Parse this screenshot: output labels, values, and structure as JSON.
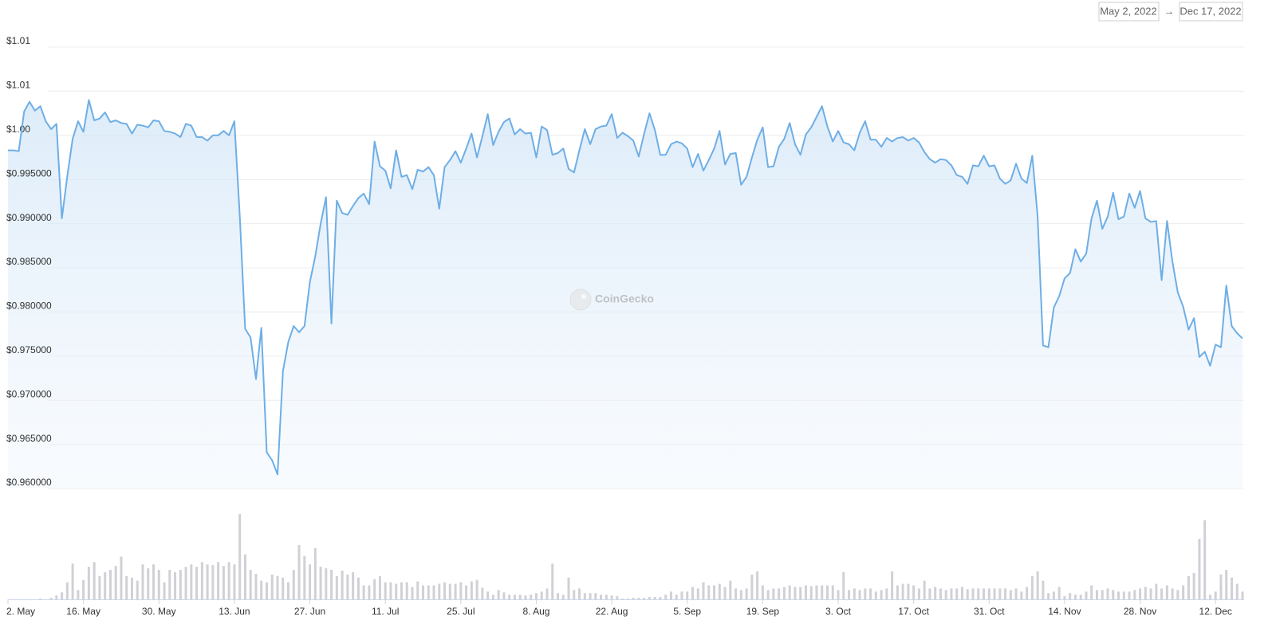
{
  "chart_data": {
    "type": "line",
    "date_range": {
      "from": "May 2, 2022",
      "separator": "→",
      "to": "Dec 17, 2022"
    },
    "watermark": "CoinGecko",
    "x": [
      0,
      1,
      2,
      3,
      4,
      5,
      6,
      7,
      8,
      9,
      10,
      11,
      12,
      13,
      14,
      15,
      16,
      17,
      18,
      19,
      20,
      21,
      22,
      23,
      24,
      25,
      26,
      27,
      28,
      29,
      30,
      31,
      32,
      33,
      34,
      35,
      36,
      37,
      38,
      39,
      40,
      41,
      42,
      43,
      44,
      45,
      46,
      47,
      48,
      49,
      50,
      51,
      52,
      53,
      54,
      55,
      56,
      57,
      58,
      59,
      60,
      61,
      62,
      63,
      64,
      65,
      66,
      67,
      68,
      69,
      70,
      71,
      72,
      73,
      74,
      75,
      76,
      77,
      78,
      79,
      80,
      81,
      82,
      83,
      84,
      85,
      86,
      87,
      88,
      89,
      90,
      91,
      92,
      93,
      94,
      95,
      96,
      97,
      98,
      99,
      100,
      101,
      102,
      103,
      104,
      105,
      106,
      107,
      108,
      109,
      110,
      111,
      112,
      113,
      114,
      115,
      116,
      117,
      118,
      119,
      120,
      121,
      122,
      123,
      124,
      125,
      126,
      127,
      128,
      129,
      130,
      131,
      132,
      133,
      134,
      135,
      136,
      137,
      138,
      139,
      140,
      141,
      142,
      143,
      144,
      145,
      146,
      147,
      148,
      149,
      150,
      151,
      152,
      153,
      154,
      155,
      156,
      157,
      158,
      159,
      160,
      161,
      162,
      163,
      164,
      165,
      166,
      167,
      168,
      169,
      170,
      171,
      172,
      173,
      174,
      175,
      176,
      177,
      178,
      179,
      180,
      181,
      182,
      183,
      184,
      185,
      186,
      187,
      188,
      189,
      190,
      191,
      192,
      193,
      194,
      195,
      196,
      197,
      198,
      199,
      200,
      201,
      202,
      203,
      204,
      205,
      206,
      207,
      208,
      209,
      210,
      211,
      212,
      213,
      214,
      215,
      216,
      217,
      218,
      219,
      220,
      221,
      222,
      223,
      224,
      225,
      226,
      227,
      228,
      229
    ],
    "series": [
      {
        "color": "#6eaee6",
        "values": [
          0.9983,
          0.9983,
          0.9982,
          1.0027,
          1.0038,
          1.0028,
          1.0033,
          1.0016,
          1.0007,
          1.0013,
          0.9906,
          0.9954,
          0.9996,
          1.0016,
          1.0004,
          1.004,
          1.0017,
          1.0019,
          1.0026,
          1.0015,
          1.0017,
          1.0014,
          1.0013,
          1.0002,
          1.0012,
          1.0011,
          1.0009,
          1.0017,
          1.0016,
          1.0005,
          1.0004,
          1.0002,
          0.9998,
          1.0013,
          1.0011,
          0.9998,
          0.9998,
          0.9994,
          1.0,
          1.0,
          1.0005,
          1.0,
          1.0016,
          0.9908,
          0.9781,
          0.9771,
          0.9724,
          0.9782,
          0.9641,
          0.9632,
          0.9616,
          0.9733,
          0.9766,
          0.9784,
          0.9777,
          0.9784,
          0.9834,
          0.9863,
          0.99,
          0.993,
          0.9787,
          0.9926,
          0.9912,
          0.991,
          0.992,
          0.9929,
          0.9934,
          0.9922,
          0.9993,
          0.9965,
          0.996,
          0.994,
          0.9983,
          0.9953,
          0.9955,
          0.9939,
          0.9961,
          0.9959,
          0.9964,
          0.9955,
          0.9917,
          0.9964,
          0.9972,
          0.9982,
          0.9969,
          0.9985,
          1.0002,
          0.9975,
          0.9999,
          1.0024,
          0.9989,
          1.0004,
          1.0015,
          1.0019,
          1.0001,
          1.0007,
          1.0002,
          1.0003,
          0.9975,
          1.001,
          1.0006,
          0.9978,
          0.998,
          0.9985,
          0.9962,
          0.9958,
          0.9983,
          1.0007,
          0.999,
          1.0007,
          1.001,
          1.0011,
          1.0024,
          0.9997,
          1.0003,
          0.9999,
          0.9994,
          0.9976,
          1.0002,
          1.0025,
          1.0006,
          0.9978,
          0.9978,
          0.999,
          0.9993,
          0.9991,
          0.9985,
          0.9964,
          0.9979,
          0.996,
          0.9972,
          0.9985,
          1.0005,
          0.9967,
          0.9979,
          0.998,
          0.9944,
          0.9953,
          0.9975,
          0.9995,
          1.0009,
          0.9964,
          0.9965,
          0.9987,
          0.9996,
          1.0014,
          0.999,
          0.9978,
          1.0001,
          1.0009,
          1.0021,
          1.0033,
          1.001,
          0.9993,
          1.0005,
          0.9992,
          0.999,
          0.9983,
          1.0003,
          1.0016,
          0.9995,
          0.9995,
          0.9987,
          0.9997,
          0.9993,
          0.9997,
          0.9998,
          0.9994,
          0.9997,
          0.9992,
          0.9981,
          0.9973,
          0.9969,
          0.9973,
          0.9972,
          0.9966,
          0.9955,
          0.9953,
          0.9945,
          0.9966,
          0.9965,
          0.9977,
          0.9965,
          0.9966,
          0.9951,
          0.9945,
          0.9949,
          0.9968,
          0.9951,
          0.9946,
          0.9977,
          0.9908,
          0.9762,
          0.976,
          0.9805,
          0.9818,
          0.9838,
          0.9844,
          0.9871,
          0.9857,
          0.9866,
          0.9906,
          0.9926,
          0.9894,
          0.9908,
          0.9935,
          0.9905,
          0.9908,
          0.9934,
          0.9918,
          0.9937,
          0.9906,
          0.9902,
          0.9903,
          0.9836,
          0.9903,
          0.9857,
          0.9822,
          0.9806,
          0.978,
          0.9793,
          0.9749,
          0.9755,
          0.9739,
          0.9763,
          0.976,
          0.983,
          0.9784,
          0.9776,
          0.977
        ]
      },
      {
        "color": "#d0d0d6",
        "axis": "y2",
        "type": "bar",
        "values": [
          0,
          0,
          0,
          0,
          0,
          0,
          1,
          0,
          2,
          5,
          9,
          22,
          46,
          12,
          25,
          42,
          48,
          30,
          35,
          38,
          43,
          55,
          30,
          28,
          24,
          45,
          40,
          45,
          38,
          22,
          38,
          35,
          38,
          42,
          45,
          42,
          48,
          45,
          44,
          48,
          43,
          48,
          45,
          110,
          58,
          38,
          33,
          24,
          22,
          32,
          30,
          28,
          22,
          38,
          70,
          56,
          45,
          66,
          42,
          40,
          38,
          30,
          37,
          32,
          35,
          28,
          18,
          18,
          26,
          30,
          22,
          22,
          20,
          22,
          22,
          16,
          23,
          18,
          18,
          18,
          20,
          22,
          20,
          20,
          22,
          18,
          23,
          25,
          15,
          10,
          6,
          12,
          9,
          6,
          6,
          6,
          5,
          6,
          8,
          10,
          14,
          46,
          8,
          6,
          28,
          12,
          14,
          8,
          8,
          8,
          6,
          6,
          5,
          4,
          1,
          1,
          2,
          2,
          2,
          3,
          3,
          3,
          6,
          10,
          6,
          10,
          10,
          16,
          14,
          22,
          18,
          18,
          20,
          16,
          24,
          14,
          12,
          14,
          32,
          36,
          18,
          12,
          14,
          14,
          16,
          18,
          16,
          16,
          18,
          17,
          18,
          18,
          18,
          18,
          12,
          35,
          12,
          14,
          12,
          14,
          14,
          10,
          12,
          14,
          36,
          18,
          20,
          20,
          18,
          14,
          24,
          14,
          16,
          14,
          12,
          14,
          14,
          16,
          13,
          14,
          14,
          14,
          14,
          14,
          14,
          14,
          12,
          14,
          10,
          16,
          30,
          36,
          24,
          8,
          10,
          16,
          4,
          8,
          6,
          6,
          10,
          18,
          12,
          12,
          14,
          12,
          10,
          10,
          10,
          12,
          14,
          16,
          14,
          20,
          14,
          18,
          14,
          12,
          18,
          30,
          34,
          78,
          102,
          6,
          10,
          32,
          38,
          28,
          20,
          10
        ]
      }
    ],
    "xlim": [
      0,
      229
    ],
    "xticks": [
      {
        "value": 0,
        "label": "2. May"
      },
      {
        "value": 14,
        "label": "16. May"
      },
      {
        "value": 28,
        "label": "30. May"
      },
      {
        "value": 42,
        "label": "13. Jun"
      },
      {
        "value": 56,
        "label": "27. Jun"
      },
      {
        "value": 70,
        "label": "11. Jul"
      },
      {
        "value": 84,
        "label": "25. Jul"
      },
      {
        "value": 98,
        "label": "8. Aug"
      },
      {
        "value": 112,
        "label": "22. Aug"
      },
      {
        "value": 126,
        "label": "5. Sep"
      },
      {
        "value": 140,
        "label": "19. Sep"
      },
      {
        "value": 154,
        "label": "3. Oct"
      },
      {
        "value": 168,
        "label": "17. Oct"
      },
      {
        "value": 182,
        "label": "31. Oct"
      },
      {
        "value": 196,
        "label": "14. Nov"
      },
      {
        "value": 210,
        "label": "28. Nov"
      },
      {
        "value": 224,
        "label": "12. Dec"
      }
    ],
    "ylim": [
      0.96,
      1.01
    ],
    "yticks": [
      {
        "value": 0.96,
        "label": "$0.960000"
      },
      {
        "value": 0.965,
        "label": "$0.965000"
      },
      {
        "value": 0.97,
        "label": "$0.970000"
      },
      {
        "value": 0.975,
        "label": "$0.975000"
      },
      {
        "value": 0.98,
        "label": "$0.980000"
      },
      {
        "value": 0.985,
        "label": "$0.985000"
      },
      {
        "value": 0.99,
        "label": "$0.990000"
      },
      {
        "value": 0.995,
        "label": "$0.995000"
      },
      {
        "value": 1.0,
        "label": "$1.00"
      },
      {
        "value": 1.005,
        "label": "$1.01"
      },
      {
        "value": 1.01,
        "label": "$1.01"
      }
    ],
    "y2lim": [
      0,
      115
    ],
    "grid": true
  }
}
